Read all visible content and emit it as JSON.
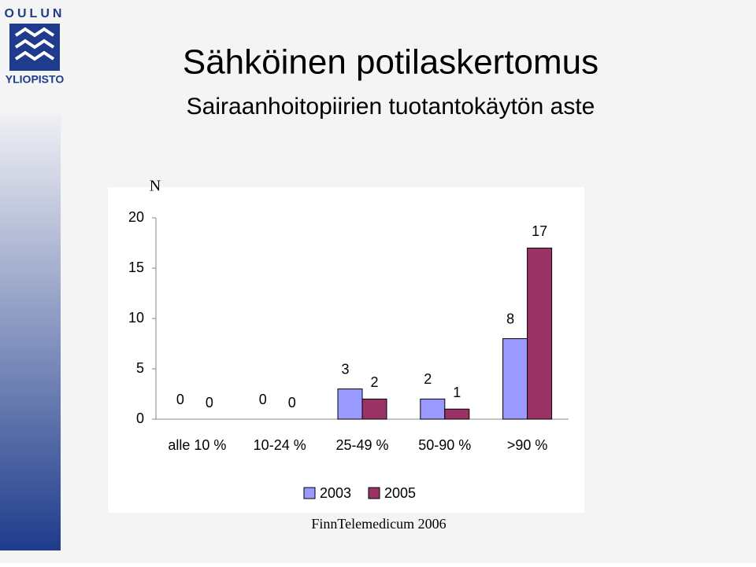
{
  "logo": {
    "top": "OULUN",
    "bottom": "YLIOPISTO"
  },
  "chart_data": {
    "type": "bar",
    "title": "Sähköinen potilaskertomus",
    "subtitle": "Sairaanhoitopiirien tuotantokäytön aste",
    "y_label": "N",
    "categories": [
      "alle 10 %",
      "10-24 %",
      "25-49 %",
      "50-90 %",
      ">90 %"
    ],
    "series": [
      {
        "name": "2003",
        "color": "#9999ff",
        "values": [
          0,
          0,
          3,
          2,
          8
        ]
      },
      {
        "name": "2005",
        "color": "#993366",
        "values": [
          0,
          0,
          2,
          1,
          17
        ]
      }
    ],
    "ylim": [
      0,
      20
    ],
    "yticks": [
      0,
      5,
      10,
      15,
      20
    ],
    "grid": false,
    "legend": "bottom",
    "source": "FinnTelemedicum 2006"
  }
}
